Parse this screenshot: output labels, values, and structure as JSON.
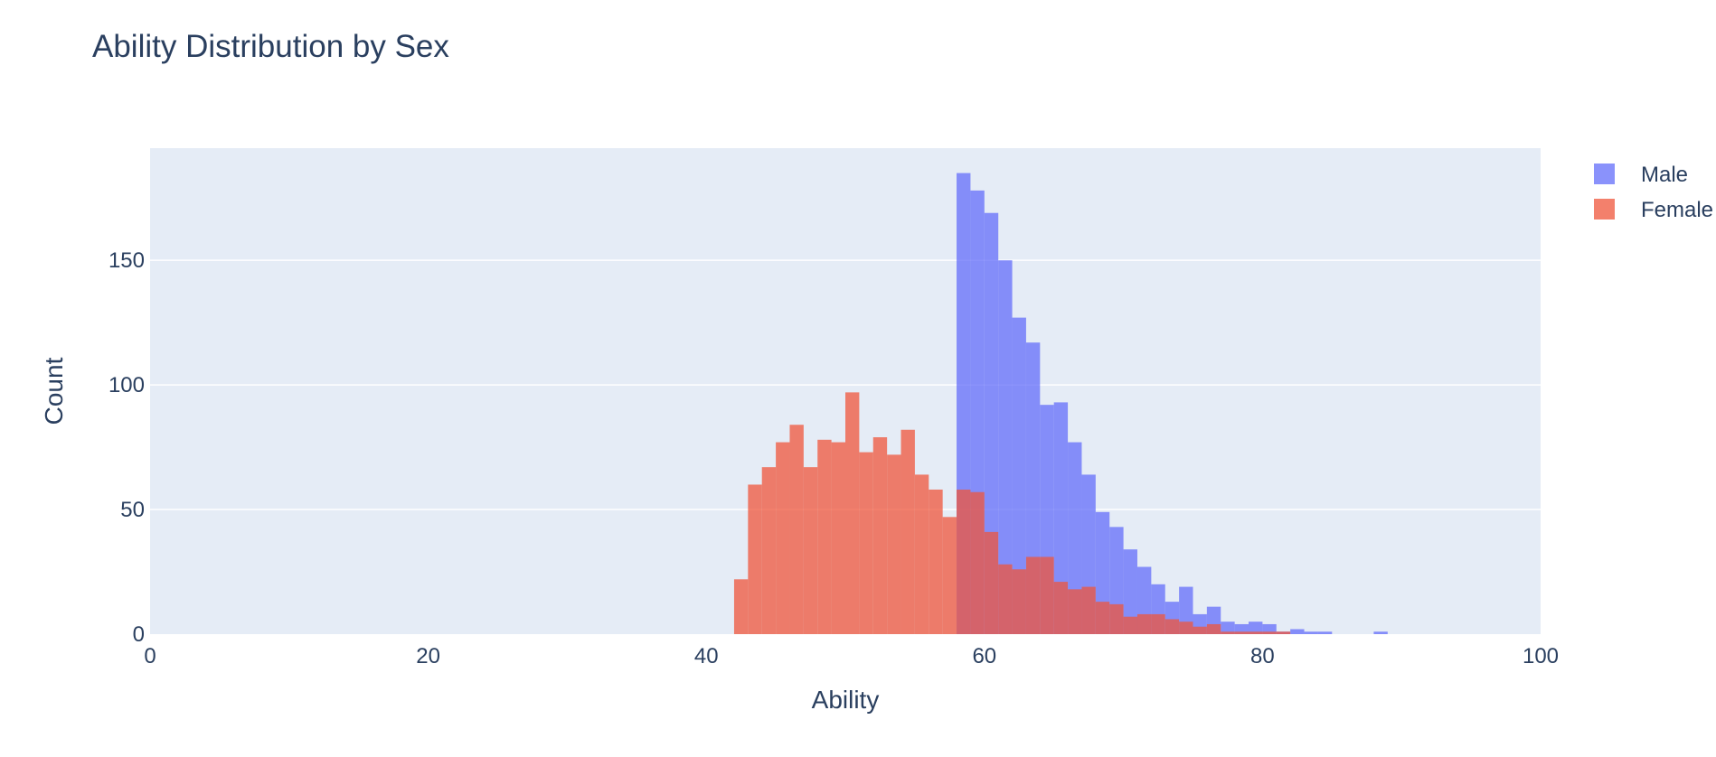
{
  "chart_data": {
    "type": "histogram",
    "title": "Ability Distribution by Sex",
    "xlabel": "Ability",
    "ylabel": "Count",
    "xlim": [
      0,
      100
    ],
    "ylim": [
      0,
      195
    ],
    "bin_width": 1,
    "x_ticks": [
      "0",
      "20",
      "40",
      "60",
      "80",
      "100"
    ],
    "y_ticks": [
      "0",
      "50",
      "100",
      "150"
    ],
    "grid": true,
    "legend_position": "top-right",
    "plot_background": "#e5ecf6",
    "series": [
      {
        "name": "Male",
        "color": "#636efa",
        "bin_starts": [
          58,
          59,
          60,
          61,
          62,
          63,
          64,
          65,
          66,
          67,
          68,
          69,
          70,
          71,
          72,
          73,
          74,
          75,
          76,
          77,
          78,
          79,
          80,
          81,
          82,
          83,
          84,
          88
        ],
        "counts": [
          185,
          178,
          169,
          150,
          127,
          117,
          92,
          93,
          77,
          64,
          49,
          43,
          34,
          27,
          20,
          13,
          19,
          8,
          11,
          5,
          4,
          5,
          4,
          1,
          2,
          1,
          1,
          1
        ]
      },
      {
        "name": "Female",
        "color": "#ef553b",
        "bin_starts": [
          42,
          43,
          44,
          45,
          46,
          47,
          48,
          49,
          50,
          51,
          52,
          53,
          54,
          55,
          56,
          57,
          58,
          59,
          60,
          61,
          62,
          63,
          64,
          65,
          66,
          67,
          68,
          69,
          70,
          71,
          72,
          73,
          74,
          75,
          76,
          77,
          78,
          79,
          80,
          81
        ],
        "counts": [
          22,
          60,
          67,
          77,
          84,
          67,
          78,
          77,
          97,
          73,
          79,
          72,
          82,
          64,
          58,
          47,
          58,
          57,
          41,
          28,
          26,
          31,
          31,
          21,
          18,
          19,
          13,
          12,
          7,
          8,
          8,
          6,
          5,
          3,
          4,
          1,
          1,
          1,
          1,
          1
        ]
      }
    ]
  }
}
